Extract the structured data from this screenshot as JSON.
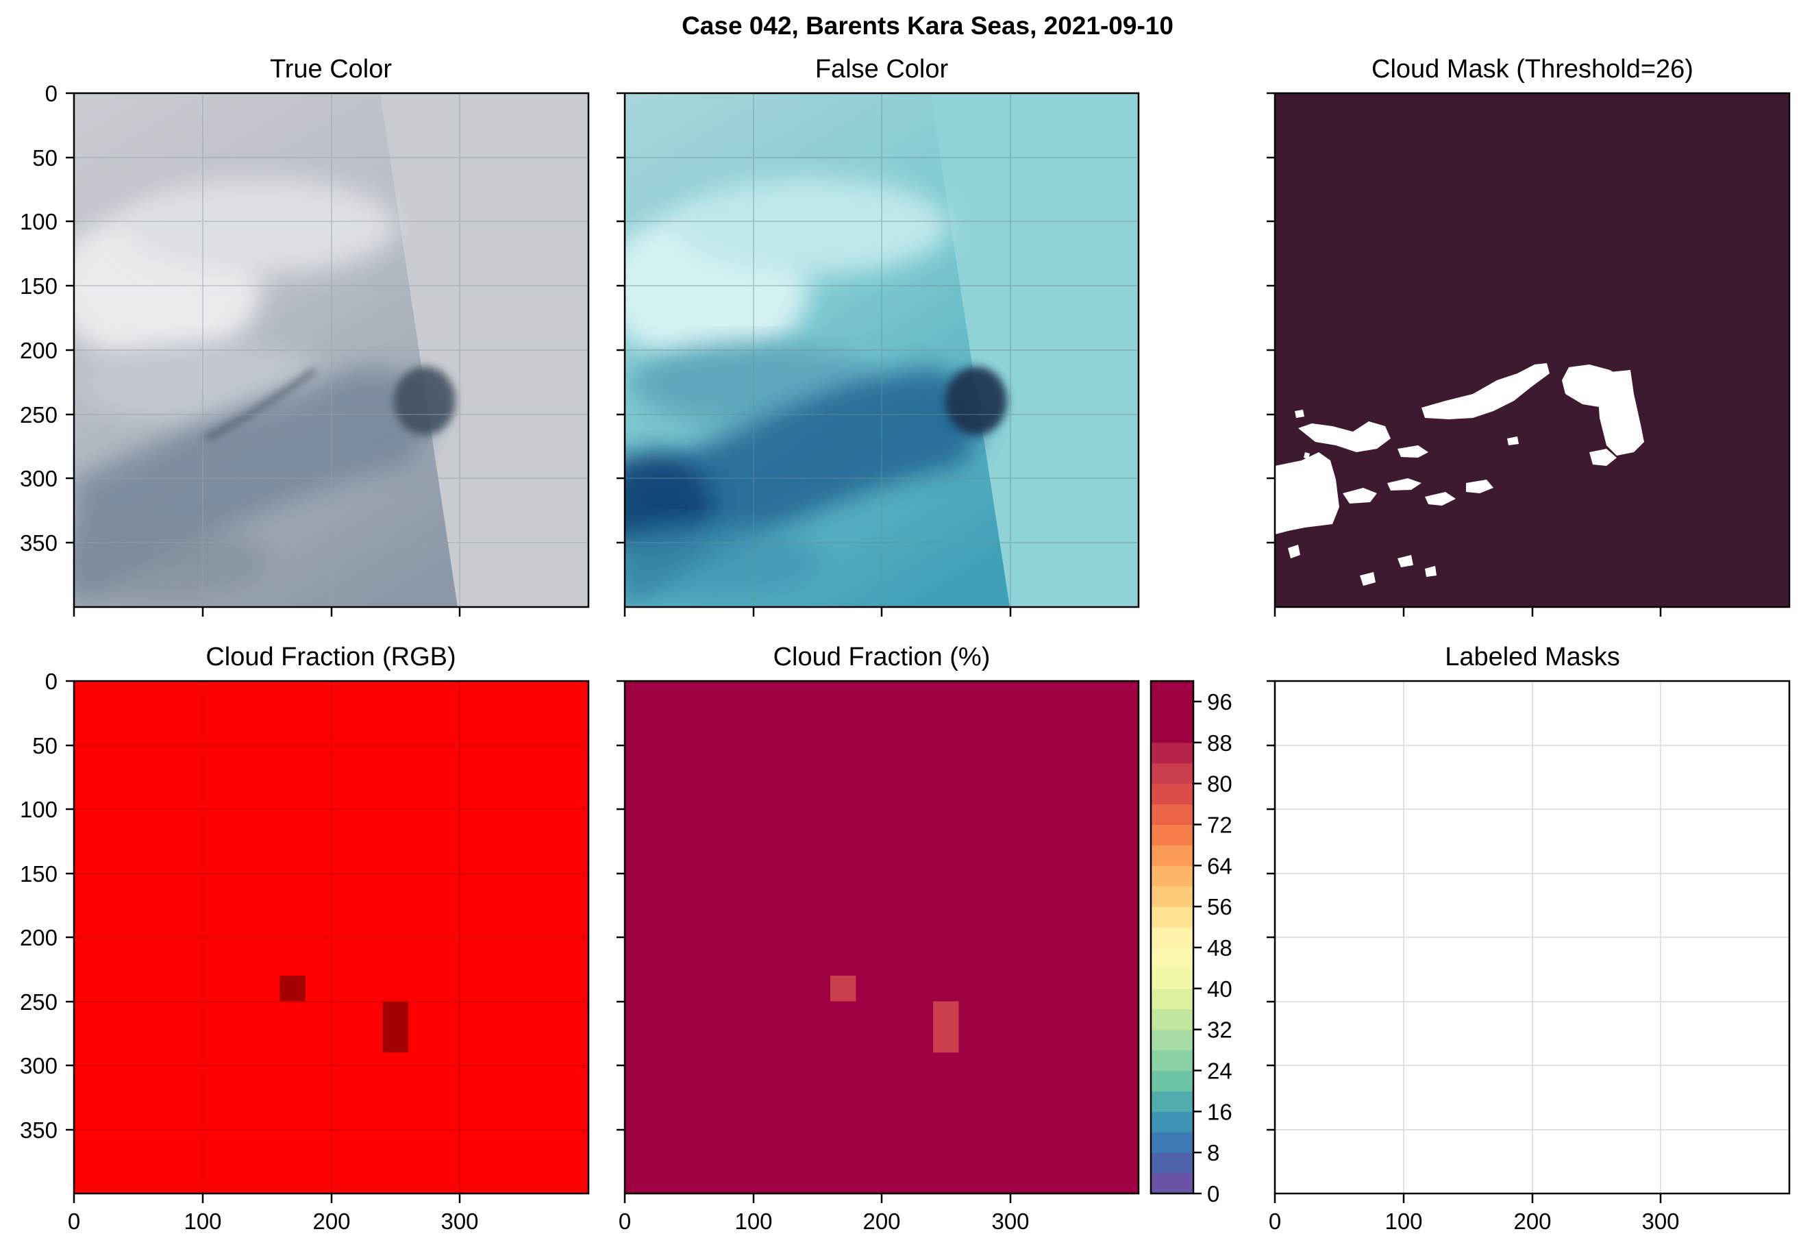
{
  "figure": {
    "title": "Case 042, Barents Kara Seas, 2021-09-10"
  },
  "colors": {
    "mask_background": "#3d1a30",
    "mask_foreground": "#ffffff",
    "fraction_rgb_full": "#ff0000",
    "fraction_rgb_partial": "#a40000",
    "fraction_pct_full": "#9e0142",
    "fraction_pct_partial": "#cb3e4e",
    "gridline": "#c8c8c8"
  },
  "chart_data": [
    {
      "type": "image",
      "panel": "true-color",
      "title": "True Color",
      "xlim": [
        0,
        400
      ],
      "ylim": [
        400,
        0
      ],
      "xticks": [
        0,
        100,
        200,
        300
      ],
      "yticks": [
        0,
        50,
        100,
        150,
        200,
        250,
        300,
        350
      ],
      "show_xticklabels": false,
      "show_yticklabels": true,
      "grid": true,
      "content": "satellite true-color imagery, mostly grey-white cloud cover with darker open water toward lower-left and around (250, 250)"
    },
    {
      "type": "image",
      "panel": "false-color",
      "title": "False Color",
      "xlim": [
        0,
        400
      ],
      "ylim": [
        400,
        0
      ],
      "xticks": [
        0,
        100,
        200,
        300
      ],
      "yticks": [
        0,
        50,
        100,
        150,
        200,
        250,
        300,
        350
      ],
      "show_xticklabels": false,
      "show_yticklabels": false,
      "grid": true,
      "content": "satellite false-color imagery, cyan-toned cloud/ice, dark blue open water along a diagonal band"
    },
    {
      "type": "image",
      "panel": "cloud-mask",
      "title": "Cloud Mask (Threshold=26)",
      "xlim": [
        0,
        400
      ],
      "ylim": [
        400,
        0
      ],
      "xticks": [
        0,
        100,
        200,
        300
      ],
      "yticks": [
        0,
        50,
        100,
        150,
        200,
        250,
        300,
        350
      ],
      "show_xticklabels": false,
      "show_yticklabels": false,
      "grid": false,
      "threshold": 26,
      "content": "binary mask, dark background with white clear-sky regions in the middle band and lower-left"
    },
    {
      "type": "heatmap",
      "panel": "cloud-fraction-rgb",
      "title": "Cloud Fraction (RGB)",
      "xlim": [
        0,
        400
      ],
      "ylim": [
        400,
        0
      ],
      "xticks": [
        0,
        100,
        200,
        300
      ],
      "yticks": [
        0,
        50,
        100,
        150,
        200,
        250,
        300,
        350
      ],
      "show_xticklabels": true,
      "show_yticklabels": true,
      "grid": true,
      "default_fraction": 100,
      "cells": [
        {
          "x0": 160,
          "x1": 180,
          "y0": 230,
          "y1": 250,
          "fraction": 64
        },
        {
          "x0": 240,
          "x1": 260,
          "y0": 250,
          "y1": 290,
          "fraction": 64
        }
      ]
    },
    {
      "type": "heatmap",
      "panel": "cloud-fraction-percent",
      "title": "Cloud Fraction (%)",
      "xlim": [
        0,
        400
      ],
      "ylim": [
        400,
        0
      ],
      "xticks": [
        0,
        100,
        200,
        300
      ],
      "yticks": [
        0,
        50,
        100,
        150,
        200,
        250,
        300,
        350
      ],
      "show_xticklabels": true,
      "show_yticklabels": false,
      "grid": false,
      "default_fraction": 100,
      "cells": [
        {
          "x0": 160,
          "x1": 180,
          "y0": 230,
          "y1": 250,
          "fraction": 92
        },
        {
          "x0": 240,
          "x1": 260,
          "y0": 250,
          "y1": 290,
          "fraction": 92
        }
      ],
      "colorbar": {
        "cmap": "Spectral",
        "vmin": 0,
        "vmax": 100,
        "levels": 25,
        "tick_values": [
          0,
          8,
          16,
          24,
          32,
          40,
          48,
          56,
          64,
          72,
          80,
          88,
          96
        ],
        "tick_labels": [
          "0",
          "8",
          "16",
          "24",
          "32",
          "40",
          "48",
          "56",
          "64",
          "72",
          "80",
          "88",
          "96"
        ],
        "level_colors": [
          "#6853a5",
          "#4f63ac",
          "#3d7ab5",
          "#3d94b5",
          "#51acad",
          "#6cc4a4",
          "#89d0a4",
          "#a6dca4",
          "#c2e69f",
          "#dcf09e",
          "#f0f8a5",
          "#fbf9b0",
          "#fff2a9",
          "#fee191",
          "#fdcc7a",
          "#fdb567",
          "#fb9b58",
          "#f67e4b",
          "#ec6446",
          "#dc4d4a",
          "#cb3e4e",
          "#b62549",
          "#9e0142",
          "#9e0142",
          "#9e0142"
        ]
      }
    },
    {
      "type": "image",
      "panel": "labeled-masks",
      "title": "Labeled Masks",
      "xlim": [
        0,
        400
      ],
      "ylim": [
        400,
        0
      ],
      "xticks": [
        0,
        100,
        200,
        300
      ],
      "yticks": [
        0,
        50,
        100,
        150,
        200,
        250,
        300,
        350
      ],
      "show_xticklabels": true,
      "show_yticklabels": false,
      "grid": true,
      "content": "empty (no labeled regions)"
    }
  ]
}
